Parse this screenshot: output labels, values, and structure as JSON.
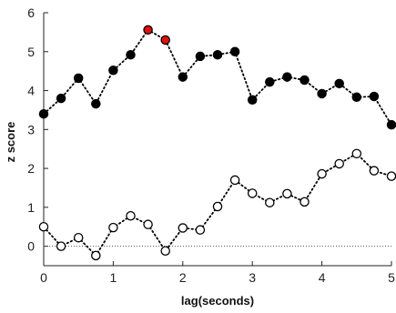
{
  "chart_data": {
    "type": "line",
    "title": "",
    "xlabel": "lag(seconds)",
    "ylabel": "z score",
    "xlim": [
      0,
      5
    ],
    "ylim": [
      -0.5,
      6
    ],
    "xticks": [
      "0",
      "1",
      "2",
      "3",
      "4",
      "5"
    ],
    "yticks": [
      "0",
      "1",
      "2",
      "3",
      "4",
      "5",
      "6"
    ],
    "grid": false,
    "legend": "none",
    "reference_line": {
      "y": 0,
      "style": "dotted"
    },
    "x": [
      0,
      0.25,
      0.5,
      0.75,
      1,
      1.25,
      1.5,
      1.75,
      2,
      2.25,
      2.5,
      2.75,
      3,
      3.25,
      3.5,
      3.75,
      4,
      4.25,
      4.5,
      4.75,
      5
    ],
    "series": [
      {
        "values": [
          3.4,
          3.8,
          4.32,
          3.66,
          4.52,
          4.92,
          5.56,
          5.3,
          4.35,
          4.88,
          4.92,
          5.0,
          3.76,
          4.22,
          4.35,
          4.27,
          3.92,
          4.18,
          3.83,
          3.85,
          3.12
        ],
        "marker": "filled",
        "color": "#000000",
        "highlight_color": "#e01010",
        "highlight_indices": [
          6,
          7
        ]
      },
      {
        "values": [
          0.5,
          0.0,
          0.22,
          -0.24,
          0.48,
          0.78,
          0.56,
          -0.12,
          0.47,
          0.42,
          1.02,
          1.7,
          1.36,
          1.12,
          1.35,
          1.14,
          1.86,
          2.12,
          2.38,
          1.94,
          1.8
        ],
        "marker": "open",
        "color": "#000000"
      }
    ]
  }
}
